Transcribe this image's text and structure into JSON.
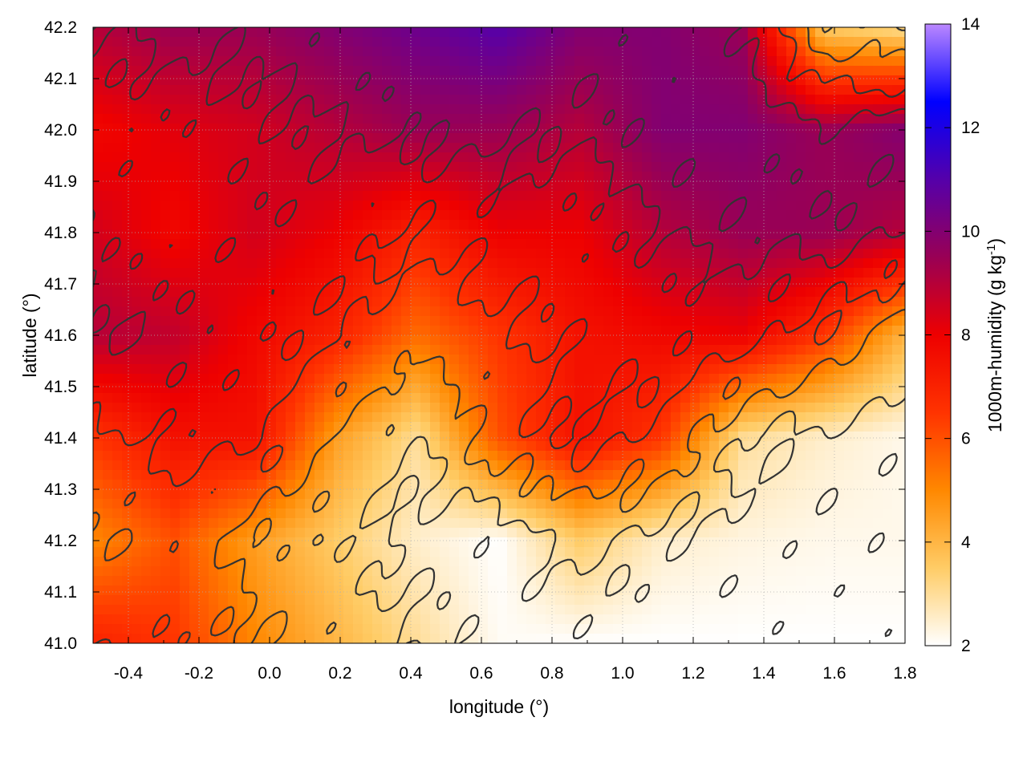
{
  "chart_data": {
    "type": "heatmap",
    "title": "",
    "xlabel": "longitude (°)",
    "ylabel": "latitude (°)",
    "colorbar_label": "1000m-humidity (g kg-1)",
    "xlim": [
      -0.5,
      1.8
    ],
    "ylim": [
      41.0,
      42.2
    ],
    "clim": [
      2,
      14
    ],
    "x_ticks": [
      -0.4,
      -0.2,
      0.0,
      0.2,
      0.4,
      0.6,
      0.8,
      1.0,
      1.2,
      1.4,
      1.6,
      1.8
    ],
    "x_tick_labels": [
      "-0.4",
      "-0.2",
      "0.0",
      "0.2",
      "0.4",
      "0.6",
      "0.8",
      "1.0",
      "1.2",
      "1.4",
      "1.6",
      "1.8"
    ],
    "y_ticks": [
      41.0,
      41.1,
      41.2,
      41.3,
      41.4,
      41.5,
      41.6,
      41.7,
      41.8,
      41.9,
      42.0,
      42.1,
      42.2
    ],
    "y_tick_labels": [
      "41.0",
      "41.1",
      "41.2",
      "41.3",
      "41.4",
      "41.5",
      "41.6",
      "41.7",
      "41.8",
      "41.9",
      "42.0",
      "42.1",
      "42.2"
    ],
    "colorbar_ticks": [
      2,
      4,
      6,
      8,
      10,
      12,
      14
    ],
    "colorbar_tick_labels": [
      "2",
      "4",
      "6",
      "8",
      "10",
      "12",
      "14"
    ],
    "colormap": [
      "#ffffff",
      "#ffcc66",
      "#ff8800",
      "#ff3300",
      "#ee0000",
      "#990055",
      "#5500aa",
      "#0000ff",
      "#bb88ff"
    ],
    "grid": true,
    "contour_color": "#333333",
    "field": {
      "lon": [
        -0.5,
        -0.27,
        -0.04,
        0.19,
        0.42,
        0.65,
        0.88,
        1.11,
        1.34,
        1.57,
        1.8
      ],
      "lat": [
        42.2,
        42.0,
        41.8,
        41.6,
        41.4,
        41.2,
        41.0
      ],
      "humidity": [
        [
          9.0,
          9.5,
          9.5,
          10.0,
          10.5,
          11.0,
          10.0,
          10.0,
          9.5,
          3.5,
          3.0
        ],
        [
          7.8,
          8.2,
          8.5,
          9.0,
          9.5,
          9.5,
          9.0,
          10.0,
          10.0,
          9.5,
          10.0
        ],
        [
          8.5,
          7.8,
          8.5,
          8.0,
          7.0,
          8.0,
          8.0,
          9.0,
          9.5,
          9.5,
          9.0
        ],
        [
          9.0,
          8.8,
          7.8,
          7.0,
          5.5,
          6.5,
          7.5,
          7.8,
          8.0,
          6.5,
          4.0
        ],
        [
          6.5,
          7.5,
          7.5,
          4.5,
          3.0,
          6.0,
          7.5,
          6.5,
          3.0,
          2.5,
          2.2
        ],
        [
          5.0,
          6.0,
          4.5,
          3.5,
          2.5,
          2.0,
          3.5,
          2.5,
          2.3,
          2.2,
          2.2
        ],
        [
          7.0,
          6.5,
          5.0,
          4.0,
          3.0,
          2.1,
          2.0,
          2.0,
          2.0,
          2.0,
          2.0
        ]
      ]
    }
  }
}
